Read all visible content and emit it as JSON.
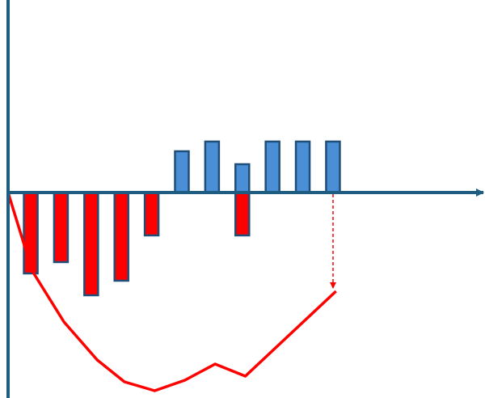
{
  "chart_data": {
    "type": "bar",
    "categories": [
      null,
      null,
      null,
      null,
      null,
      null,
      null,
      null,
      null,
      null,
      null
    ],
    "xlim": [
      -0.75,
      15.03
    ],
    "ylim": [
      -254,
      238
    ],
    "series": [
      {
        "color": "#ff0000",
        "values": [
          -100,
          -86,
          -127,
          -109,
          -53,
          null,
          null,
          -53,
          null,
          null,
          null
        ]
      },
      {
        "color": "#4a8fd6",
        "values": [
          null,
          null,
          null,
          null,
          null,
          51,
          63,
          35,
          63,
          63,
          63
        ]
      }
    ],
    "line": {
      "color": "#ff0000",
      "x": [
        -0.75,
        0.05,
        1.1,
        2.2,
        3.1,
        4.1,
        5.1,
        6.1,
        7.1,
        10.1
      ],
      "values": [
        0,
        -97,
        -160,
        -207,
        -234,
        -245,
        -232,
        -212,
        -227,
        -122
      ]
    }
  }
}
